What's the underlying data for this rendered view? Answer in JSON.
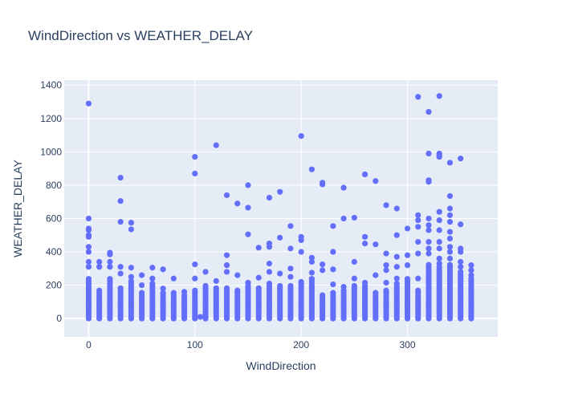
{
  "chart_data": {
    "type": "scatter",
    "title": "WindDirection vs WEATHER_DELAY",
    "xlabel": "WindDirection",
    "ylabel": "WEATHER_DELAY",
    "xlim": [
      -23,
      385
    ],
    "ylim": [
      -110,
      1430
    ],
    "xticks": [
      0,
      100,
      200,
      300
    ],
    "yticks": [
      0,
      200,
      400,
      600,
      800,
      1000,
      1200,
      1400
    ],
    "grid": true,
    "legend": "none",
    "colors": {
      "marker": "#636efa",
      "plot_bg": "#e5ecf6",
      "grid": "#ffffff",
      "text": "#2a3f5f"
    },
    "series": [
      {
        "points": [
          [
            0,
            1290
          ],
          [
            0,
            600
          ],
          [
            0,
            540
          ],
          [
            0,
            530
          ],
          [
            0,
            500
          ],
          [
            0,
            490
          ],
          [
            0,
            430
          ],
          [
            0,
            400
          ],
          [
            0,
            340
          ],
          [
            0,
            310
          ],
          [
            10,
            340
          ],
          [
            10,
            310
          ],
          [
            20,
            395
          ],
          [
            20,
            385
          ],
          [
            20,
            340
          ],
          [
            20,
            310
          ],
          [
            30,
            845
          ],
          [
            30,
            705
          ],
          [
            30,
            580
          ],
          [
            30,
            310
          ],
          [
            30,
            270
          ],
          [
            40,
            575
          ],
          [
            40,
            535
          ],
          [
            40,
            305
          ],
          [
            40,
            250
          ],
          [
            50,
            260
          ],
          [
            50,
            200
          ],
          [
            60,
            305
          ],
          [
            60,
            240
          ],
          [
            70,
            295
          ],
          [
            70,
            180
          ],
          [
            80,
            240
          ],
          [
            90,
            160
          ],
          [
            100,
            970
          ],
          [
            100,
            870
          ],
          [
            100,
            325
          ],
          [
            100,
            240
          ],
          [
            105,
            10
          ],
          [
            110,
            10
          ],
          [
            110,
            280
          ],
          [
            120,
            1040
          ],
          [
            120,
            225
          ],
          [
            130,
            740
          ],
          [
            130,
            380
          ],
          [
            130,
            320
          ],
          [
            130,
            280
          ],
          [
            140,
            690
          ],
          [
            140,
            260
          ],
          [
            150,
            800
          ],
          [
            150,
            665
          ],
          [
            150,
            505
          ],
          [
            150,
            215
          ],
          [
            160,
            425
          ],
          [
            160,
            245
          ],
          [
            170,
            725
          ],
          [
            170,
            450
          ],
          [
            170,
            430
          ],
          [
            170,
            330
          ],
          [
            170,
            280
          ],
          [
            180,
            760
          ],
          [
            180,
            485
          ],
          [
            180,
            270
          ],
          [
            190,
            555
          ],
          [
            190,
            420
          ],
          [
            190,
            300
          ],
          [
            190,
            250
          ],
          [
            200,
            1095
          ],
          [
            200,
            490
          ],
          [
            200,
            470
          ],
          [
            200,
            400
          ],
          [
            200,
            220
          ],
          [
            210,
            895
          ],
          [
            210,
            365
          ],
          [
            210,
            340
          ],
          [
            210,
            275
          ],
          [
            220,
            815
          ],
          [
            220,
            805
          ],
          [
            220,
            325
          ],
          [
            220,
            290
          ],
          [
            230,
            555
          ],
          [
            230,
            400
          ],
          [
            230,
            295
          ],
          [
            230,
            205
          ],
          [
            240,
            785
          ],
          [
            240,
            600
          ],
          [
            240,
            190
          ],
          [
            250,
            605
          ],
          [
            250,
            340
          ],
          [
            250,
            240
          ],
          [
            260,
            865
          ],
          [
            260,
            490
          ],
          [
            260,
            450
          ],
          [
            260,
            215
          ],
          [
            270,
            825
          ],
          [
            270,
            445
          ],
          [
            270,
            260
          ],
          [
            280,
            680
          ],
          [
            280,
            390
          ],
          [
            280,
            320
          ],
          [
            280,
            290
          ],
          [
            280,
            215
          ],
          [
            290,
            660
          ],
          [
            290,
            500
          ],
          [
            290,
            370
          ],
          [
            290,
            310
          ],
          [
            290,
            240
          ],
          [
            300,
            540
          ],
          [
            300,
            380
          ],
          [
            300,
            320
          ],
          [
            300,
            230
          ],
          [
            310,
            1330
          ],
          [
            310,
            620
          ],
          [
            310,
            590
          ],
          [
            310,
            550
          ],
          [
            310,
            460
          ],
          [
            310,
            390
          ],
          [
            310,
            240
          ],
          [
            320,
            1240
          ],
          [
            320,
            990
          ],
          [
            320,
            830
          ],
          [
            320,
            820
          ],
          [
            320,
            600
          ],
          [
            320,
            560
          ],
          [
            320,
            530
          ],
          [
            320,
            460
          ],
          [
            320,
            420
          ],
          [
            320,
            390
          ],
          [
            330,
            1335
          ],
          [
            330,
            990
          ],
          [
            330,
            980
          ],
          [
            330,
            970
          ],
          [
            330,
            640
          ],
          [
            330,
            590
          ],
          [
            330,
            530
          ],
          [
            330,
            460
          ],
          [
            330,
            420
          ],
          [
            330,
            360
          ],
          [
            330,
            330
          ],
          [
            340,
            935
          ],
          [
            340,
            735
          ],
          [
            340,
            660
          ],
          [
            340,
            620
          ],
          [
            340,
            580
          ],
          [
            340,
            520
          ],
          [
            340,
            480
          ],
          [
            340,
            430
          ],
          [
            340,
            400
          ],
          [
            340,
            360
          ],
          [
            350,
            960
          ],
          [
            350,
            565
          ],
          [
            350,
            420
          ],
          [
            350,
            400
          ],
          [
            350,
            340
          ],
          [
            350,
            310
          ],
          [
            360,
            320
          ],
          [
            360,
            290
          ],
          [
            360,
            260
          ]
        ],
        "dense_columns": [
          {
            "x": 0,
            "max": 240
          },
          {
            "x": 10,
            "max": 170
          },
          {
            "x": 20,
            "max": 250
          },
          {
            "x": 30,
            "max": 190
          },
          {
            "x": 40,
            "max": 230
          },
          {
            "x": 50,
            "max": 160
          },
          {
            "x": 60,
            "max": 210
          },
          {
            "x": 70,
            "max": 165
          },
          {
            "x": 80,
            "max": 160
          },
          {
            "x": 90,
            "max": 150
          },
          {
            "x": 100,
            "max": 170
          },
          {
            "x": 110,
            "max": 200
          },
          {
            "x": 120,
            "max": 185
          },
          {
            "x": 130,
            "max": 195
          },
          {
            "x": 140,
            "max": 180
          },
          {
            "x": 150,
            "max": 200
          },
          {
            "x": 160,
            "max": 190
          },
          {
            "x": 170,
            "max": 215
          },
          {
            "x": 180,
            "max": 200
          },
          {
            "x": 190,
            "max": 200
          },
          {
            "x": 200,
            "max": 210
          },
          {
            "x": 210,
            "max": 250
          },
          {
            "x": 220,
            "max": 150
          },
          {
            "x": 230,
            "max": 160
          },
          {
            "x": 240,
            "max": 180
          },
          {
            "x": 250,
            "max": 200
          },
          {
            "x": 260,
            "max": 200
          },
          {
            "x": 270,
            "max": 165
          },
          {
            "x": 280,
            "max": 170
          },
          {
            "x": 290,
            "max": 220
          },
          {
            "x": 300,
            "max": 240
          },
          {
            "x": 310,
            "max": 170
          },
          {
            "x": 320,
            "max": 330
          },
          {
            "x": 330,
            "max": 310
          },
          {
            "x": 340,
            "max": 330
          },
          {
            "x": 350,
            "max": 290
          },
          {
            "x": 360,
            "max": 250
          }
        ]
      }
    ]
  }
}
